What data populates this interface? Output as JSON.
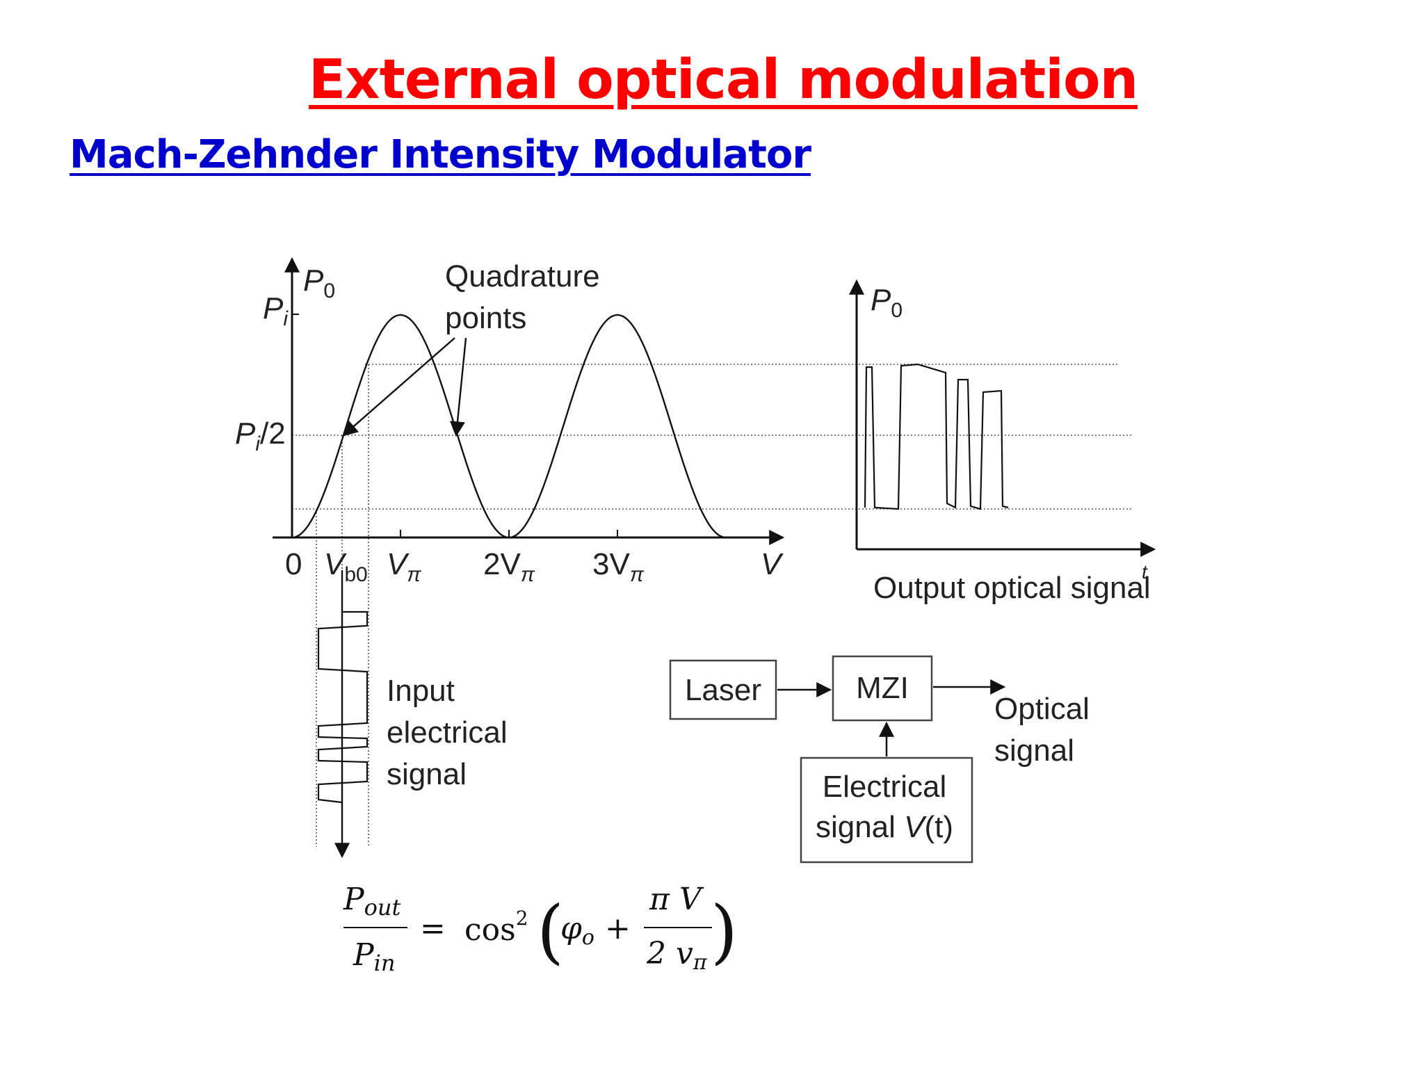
{
  "slide": {
    "title": "External optical modulation",
    "subtitle": "Mach-Zehnder Intensity Modulator"
  },
  "transfer_plot": {
    "y_axis_label": "P",
    "y_axis_sub": "0",
    "y_ticks": [
      {
        "main": "P",
        "sub": "i",
        "rest": ""
      },
      {
        "main": "P",
        "sub": "i",
        "rest": "/2"
      }
    ],
    "x_ticks": [
      {
        "main": "0",
        "sub": ""
      },
      {
        "main": "V",
        "sub": "b0"
      },
      {
        "main": "V",
        "sub": "π"
      },
      {
        "main": "2V",
        "sub": "π"
      },
      {
        "main": "3V",
        "sub": "π"
      }
    ],
    "x_axis_label": "V",
    "annotation_line1": "Quadrature",
    "annotation_line2": "points"
  },
  "input_signal": {
    "label_lines": [
      "Input",
      "electrical",
      "signal"
    ]
  },
  "output_plot": {
    "y_axis_label": "P",
    "y_axis_sub": "0",
    "x_axis_label": "t",
    "caption": "Output optical signal"
  },
  "block_diagram": {
    "laser": "Laser",
    "mzi": "MZI",
    "output_line1": "Optical",
    "output_line2": "signal",
    "elec_line1": "Electrical",
    "elec_line2_prefix": "signal ",
    "elec_line2_var": "V",
    "elec_line2_suffix": "(t)"
  },
  "equation": {
    "lhs_num_main": "P",
    "lhs_num_sub": "out",
    "lhs_den_main": "P",
    "lhs_den_sub": "in",
    "equals": "=",
    "func": "cos",
    "power": "2",
    "open_paren": "(",
    "phi": "φ",
    "phi_sub": "o",
    "plus": "+",
    "frac_num": "π V",
    "frac_den_main": "2 v",
    "frac_den_sub": "π",
    "close_paren": ")"
  }
}
